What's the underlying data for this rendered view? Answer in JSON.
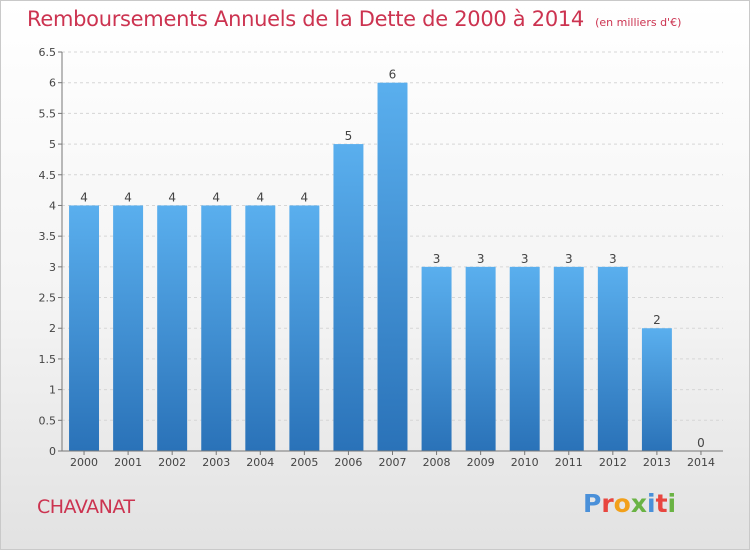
{
  "header": {
    "title": "Remboursements Annuels de la Dette de 2000 à 2014",
    "subtitle": "(en milliers d'€)"
  },
  "footer": {
    "place": "CHAVANAT",
    "logo": "Proxiti",
    "logo_colors": [
      "#4a90d9",
      "#e8463f",
      "#f2a01a",
      "#6ab344",
      "#4a90d9",
      "#e8463f",
      "#6ab344"
    ]
  },
  "chart_data": {
    "type": "bar",
    "categories": [
      "2000",
      "2001",
      "2002",
      "2003",
      "2004",
      "2005",
      "2006",
      "2007",
      "2008",
      "2009",
      "2010",
      "2011",
      "2012",
      "2013",
      "2014"
    ],
    "values": [
      4,
      4,
      4,
      4,
      4,
      4,
      5,
      6,
      3,
      3,
      3,
      3,
      3,
      2,
      0
    ],
    "value_labels": [
      "4",
      "4",
      "4",
      "4",
      "4",
      "4",
      "5",
      "6",
      "3",
      "3",
      "3",
      "3",
      "3",
      "2",
      "0"
    ],
    "ylim": [
      0,
      6.5
    ],
    "yticks": [
      "0",
      "0.5",
      "1",
      "1.5",
      "2",
      "2.5",
      "3",
      "3.5",
      "4",
      "4.5",
      "5",
      "5.5",
      "6",
      "6.5"
    ],
    "bar_color": "#4a9de0",
    "bar_color_dark": "#2d79bf",
    "grid": true
  }
}
